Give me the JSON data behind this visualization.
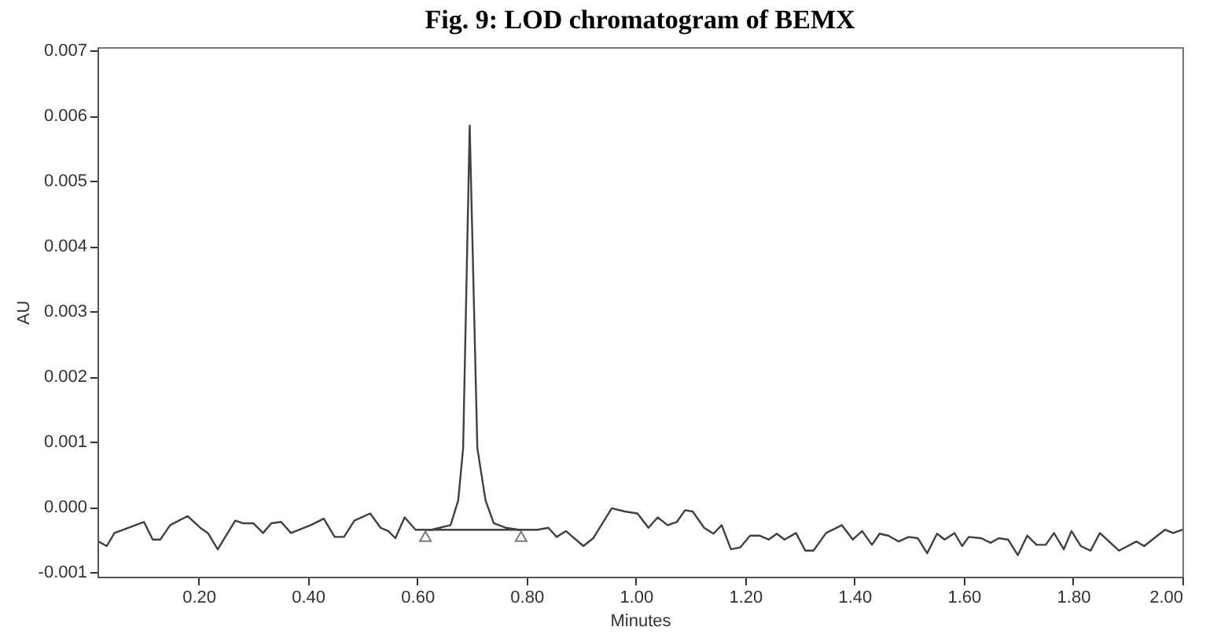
{
  "chart_data": {
    "type": "line",
    "title": "Fig. 9:  LOD chromatogram of BEMX",
    "xlabel": "Minutes",
    "ylabel": "AU",
    "xlim": [
      0.015,
      2.0
    ],
    "ylim": [
      -0.00107,
      0.00705
    ],
    "xticks": [
      {
        "value": 0.2,
        "label": "0.20"
      },
      {
        "value": 0.4,
        "label": "0.40"
      },
      {
        "value": 0.6,
        "label": "0.60"
      },
      {
        "value": 0.8,
        "label": "0.80"
      },
      {
        "value": 1.0,
        "label": "1.00"
      },
      {
        "value": 1.2,
        "label": "1.20"
      },
      {
        "value": 1.4,
        "label": "1.40"
      },
      {
        "value": 1.6,
        "label": "1.60"
      },
      {
        "value": 1.8,
        "label": "1.80"
      },
      {
        "value": 2.0,
        "label": "2.00"
      }
    ],
    "yticks": [
      {
        "value": -0.001,
        "label": "-0.001"
      },
      {
        "value": 0,
        "label": "0.000"
      },
      0.001,
      0.002,
      0.003,
      0.004,
      0.005,
      0.006,
      0.007
    ],
    "grid": false,
    "line_style": "solid",
    "marker": "none",
    "series": [
      {
        "color": "#404040",
        "x": [
          0.017,
          0.032,
          0.046,
          0.1,
          0.116,
          0.13,
          0.148,
          0.18,
          0.203,
          0.217,
          0.235,
          0.267,
          0.281,
          0.3,
          0.318,
          0.333,
          0.351,
          0.369,
          0.405,
          0.429,
          0.449,
          0.466,
          0.485,
          0.514,
          0.533,
          0.547,
          0.56,
          0.577,
          0.597,
          0.626,
          0.661,
          0.675,
          0.684,
          0.696,
          0.71,
          0.725,
          0.74,
          0.762,
          0.786,
          0.82,
          0.84,
          0.855,
          0.872,
          0.904,
          0.922,
          0.956,
          0.98,
          1.003,
          1.023,
          1.04,
          1.058,
          1.075,
          1.09,
          1.104,
          1.125,
          1.142,
          1.157,
          1.174,
          1.191,
          1.209,
          1.226,
          1.243,
          1.258,
          1.272,
          1.293,
          1.31,
          1.325,
          1.348,
          1.377,
          1.397,
          1.414,
          1.432,
          1.446,
          1.462,
          1.481,
          1.499,
          1.516,
          1.533,
          1.551,
          1.565,
          1.583,
          1.597,
          1.609,
          1.632,
          1.649,
          1.664,
          1.681,
          1.699,
          1.716,
          1.733,
          1.75,
          1.765,
          1.783,
          1.797,
          1.814,
          1.832,
          1.849,
          1.884,
          1.916,
          1.93,
          1.968,
          1.983,
          2.0
        ],
        "values": [
          -0.00053,
          -0.0006,
          -0.0004,
          -0.00023,
          -0.0005,
          -0.0005,
          -0.00028,
          -0.00014,
          -0.00032,
          -0.0004,
          -0.00065,
          -0.00021,
          -0.00025,
          -0.00025,
          -0.0004,
          -0.00025,
          -0.00023,
          -0.0004,
          -0.00028,
          -0.00018,
          -0.00046,
          -0.00046,
          -0.00021,
          -0.0001,
          -0.00032,
          -0.00037,
          -0.00048,
          -0.00016,
          -0.00035,
          -0.00035,
          -0.00028,
          0.0001,
          0.0009,
          0.00585,
          0.0009,
          0.0001,
          -0.00025,
          -0.00032,
          -0.00035,
          -0.00035,
          -0.00032,
          -0.00046,
          -0.00037,
          -0.0006,
          -0.00048,
          -2e-05,
          -7e-05,
          -0.0001,
          -0.00032,
          -0.00016,
          -0.00028,
          -0.00023,
          -5e-05,
          -7e-05,
          -0.00032,
          -0.00041,
          -0.00028,
          -0.00065,
          -0.00062,
          -0.00044,
          -0.00044,
          -0.0005,
          -0.00041,
          -0.0005,
          -0.0004,
          -0.00067,
          -0.00067,
          -0.0004,
          -0.00028,
          -0.0005,
          -0.00037,
          -0.00058,
          -0.00041,
          -0.00044,
          -0.00053,
          -0.00046,
          -0.00048,
          -0.00071,
          -0.00041,
          -0.0005,
          -0.0004,
          -0.0006,
          -0.00046,
          -0.00048,
          -0.00055,
          -0.00048,
          -0.0005,
          -0.00074,
          -0.00044,
          -0.00058,
          -0.00058,
          -0.0004,
          -0.00065,
          -0.00037,
          -0.0006,
          -0.00067,
          -0.0004,
          -0.00067,
          -0.00053,
          -0.0006,
          -0.00035,
          -0.0004,
          -0.00035
        ]
      },
      {
        "color": "#404040",
        "x": [
          0.615,
          0.79
        ],
        "values": [
          -0.00035,
          -0.00035
        ]
      },
      {
        "type": "scatter",
        "color": "#404040",
        "marker": "triangle",
        "x": [
          0.615,
          0.79
        ],
        "values": [
          -0.00045,
          -0.00045
        ]
      }
    ]
  }
}
